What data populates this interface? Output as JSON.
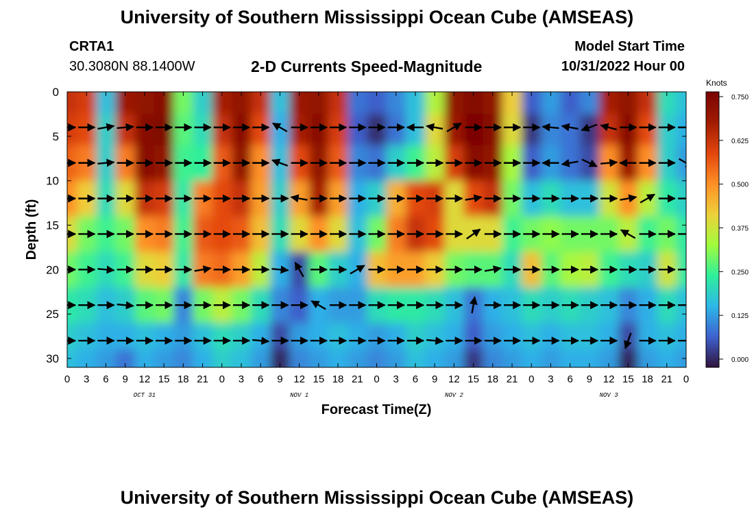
{
  "header": {
    "title": "University of Southern Mississippi Ocean Cube (AMSEAS)",
    "station_id": "CRTA1",
    "coordinates": "30.3080N  88.1400W",
    "subtitle": "2-D Currents Speed-Magnitude",
    "model_start_label": "Model Start Time",
    "model_start_value": "10/31/2022 Hour 00"
  },
  "footer": {
    "title": "University of Southern Mississippi Ocean Cube (AMSEAS)"
  },
  "chart_data": {
    "type": "heatmap",
    "title": "2-D Currents Speed-Magnitude",
    "xlabel": "Forecast Time(Z)",
    "ylabel": "Depth (ft)",
    "x_unit": "hours since 10/31/2022 00Z",
    "xlim": [
      0,
      96
    ],
    "ylim": [
      0,
      31
    ],
    "y_inverted": true,
    "x_ticks": [
      0,
      3,
      6,
      9,
      12,
      15,
      18,
      21,
      24,
      27,
      30,
      33,
      36,
      39,
      42,
      45,
      48,
      51,
      54,
      57,
      60,
      63,
      66,
      69,
      72,
      75,
      78,
      81,
      84,
      87,
      90,
      93,
      96
    ],
    "x_tick_labels": [
      "0",
      "3",
      "6",
      "9",
      "12",
      "15",
      "18",
      "21",
      "0",
      "3",
      "6",
      "9",
      "12",
      "15",
      "18",
      "21",
      "0",
      "3",
      "6",
      "9",
      "12",
      "15",
      "18",
      "21",
      "0",
      "3",
      "6",
      "9",
      "12",
      "15",
      "18",
      "21",
      "0"
    ],
    "day_labels": [
      {
        "hour": 12,
        "text": "OCT 31"
      },
      {
        "hour": 36,
        "text": "NOV 1"
      },
      {
        "hour": 60,
        "text": "NOV 2"
      },
      {
        "hour": 84,
        "text": "NOV 3"
      }
    ],
    "y_ticks": [
      0,
      5,
      10,
      15,
      20,
      25,
      30
    ],
    "y_tick_labels": [
      "0",
      "5",
      "10",
      "15",
      "20",
      "25",
      "30"
    ],
    "colorbar": {
      "unit": "Knots",
      "range": [
        0,
        0.75
      ],
      "ticks": [
        0.0,
        0.125,
        0.25,
        0.375,
        0.5,
        0.625,
        0.75
      ],
      "tick_labels": [
        "0.000",
        "0.125",
        "0.250",
        "0.375",
        "0.500",
        "0.625",
        "0.750"
      ],
      "colormap": [
        "#30123b",
        "#3e62cf",
        "#2db7e8",
        "#2fef9b",
        "#a1fc3d",
        "#edd03a",
        "#fe8f26",
        "#e2460d",
        "#a11b02",
        "#7a0403"
      ]
    },
    "time_steps": [
      0,
      3,
      6,
      9,
      12,
      15,
      18,
      21,
      24,
      27,
      30,
      33,
      36,
      39,
      42,
      45,
      48,
      51,
      54,
      57,
      60,
      63,
      66,
      69,
      72,
      75,
      78,
      81,
      84,
      87,
      90,
      93,
      96
    ],
    "depths": [
      1,
      4,
      8,
      12,
      16,
      20,
      24,
      28,
      30
    ],
    "speed_knots": [
      [
        0.62,
        0.6,
        0.18,
        0.68,
        0.7,
        0.72,
        0.3,
        0.2,
        0.66,
        0.7,
        0.62,
        0.18,
        0.68,
        0.7,
        0.62,
        0.1,
        0.08,
        0.12,
        0.18,
        0.35,
        0.7,
        0.73,
        0.7,
        0.42,
        0.08,
        0.14,
        0.08,
        0.12,
        0.66,
        0.7,
        0.62,
        0.22,
        0.18
      ],
      [
        0.6,
        0.58,
        0.2,
        0.62,
        0.72,
        0.74,
        0.28,
        0.22,
        0.62,
        0.72,
        0.58,
        0.16,
        0.66,
        0.72,
        0.6,
        0.08,
        0.03,
        0.1,
        0.18,
        0.4,
        0.68,
        0.75,
        0.72,
        0.4,
        0.04,
        0.12,
        0.1,
        0.04,
        0.62,
        0.72,
        0.58,
        0.2,
        0.16
      ],
      [
        0.55,
        0.52,
        0.2,
        0.52,
        0.72,
        0.7,
        0.26,
        0.25,
        0.56,
        0.7,
        0.5,
        0.18,
        0.58,
        0.7,
        0.56,
        0.12,
        0.1,
        0.2,
        0.26,
        0.36,
        0.6,
        0.72,
        0.7,
        0.34,
        0.08,
        0.14,
        0.1,
        0.06,
        0.5,
        0.68,
        0.5,
        0.2,
        0.14
      ],
      [
        0.5,
        0.42,
        0.22,
        0.4,
        0.62,
        0.6,
        0.24,
        0.52,
        0.58,
        0.62,
        0.48,
        0.2,
        0.48,
        0.66,
        0.48,
        0.16,
        0.2,
        0.46,
        0.58,
        0.6,
        0.4,
        0.58,
        0.62,
        0.3,
        0.18,
        0.22,
        0.18,
        0.18,
        0.38,
        0.5,
        0.36,
        0.24,
        0.2
      ],
      [
        0.4,
        0.3,
        0.26,
        0.3,
        0.5,
        0.52,
        0.26,
        0.56,
        0.58,
        0.56,
        0.44,
        0.22,
        0.4,
        0.5,
        0.4,
        0.18,
        0.3,
        0.52,
        0.62,
        0.58,
        0.4,
        0.4,
        0.4,
        0.26,
        0.3,
        0.32,
        0.3,
        0.3,
        0.3,
        0.36,
        0.26,
        0.3,
        0.24
      ],
      [
        0.3,
        0.26,
        0.22,
        0.26,
        0.4,
        0.42,
        0.24,
        0.52,
        0.54,
        0.48,
        0.36,
        0.16,
        0.06,
        0.28,
        0.2,
        0.16,
        0.44,
        0.48,
        0.48,
        0.42,
        0.3,
        0.28,
        0.28,
        0.22,
        0.44,
        0.28,
        0.34,
        0.36,
        0.26,
        0.22,
        0.2,
        0.38,
        0.24
      ],
      [
        0.24,
        0.22,
        0.18,
        0.2,
        0.28,
        0.3,
        0.12,
        0.3,
        0.36,
        0.3,
        0.22,
        0.12,
        0.08,
        0.16,
        0.14,
        0.14,
        0.22,
        0.24,
        0.24,
        0.22,
        0.18,
        0.1,
        0.16,
        0.18,
        0.22,
        0.2,
        0.22,
        0.2,
        0.18,
        0.12,
        0.16,
        0.22,
        0.18
      ],
      [
        0.2,
        0.18,
        0.16,
        0.16,
        0.18,
        0.16,
        0.14,
        0.18,
        0.22,
        0.2,
        0.16,
        0.06,
        0.14,
        0.16,
        0.18,
        0.16,
        0.14,
        0.16,
        0.2,
        0.18,
        0.16,
        0.08,
        0.14,
        0.16,
        0.18,
        0.16,
        0.18,
        0.18,
        0.16,
        0.06,
        0.16,
        0.18,
        0.16
      ],
      [
        0.18,
        0.16,
        0.14,
        0.1,
        0.16,
        0.14,
        0.12,
        0.16,
        0.2,
        0.18,
        0.14,
        0.02,
        0.12,
        0.14,
        0.16,
        0.14,
        0.12,
        0.14,
        0.18,
        0.16,
        0.14,
        0.04,
        0.12,
        0.14,
        0.16,
        0.14,
        0.16,
        0.16,
        0.14,
        0.02,
        0.14,
        0.16,
        0.14
      ]
    ],
    "vector_depths": [
      4,
      8,
      12,
      16,
      20,
      24,
      28
    ],
    "vector_hours": [
      0,
      3,
      6,
      9,
      12,
      15,
      18,
      21,
      24,
      27,
      30,
      33,
      36,
      39,
      42,
      45,
      48,
      51,
      54,
      57,
      60,
      63,
      66,
      69,
      72,
      75,
      78,
      81,
      84,
      87,
      90,
      93,
      96
    ],
    "vector_direction_deg": [
      [
        90,
        90,
        80,
        85,
        90,
        90,
        90,
        90,
        90,
        90,
        90,
        300,
        90,
        90,
        90,
        90,
        90,
        90,
        270,
        280,
        60,
        90,
        90,
        90,
        90,
        275,
        280,
        250,
        285,
        90,
        90,
        90,
        90
      ],
      [
        90,
        90,
        85,
        90,
        90,
        90,
        90,
        90,
        90,
        90,
        90,
        290,
        90,
        90,
        90,
        90,
        90,
        90,
        90,
        90,
        90,
        90,
        90,
        90,
        90,
        270,
        260,
        115,
        85,
        270,
        90,
        90,
        120
      ],
      [
        90,
        90,
        90,
        90,
        90,
        90,
        90,
        90,
        90,
        90,
        90,
        90,
        280,
        90,
        90,
        90,
        90,
        90,
        90,
        90,
        90,
        80,
        90,
        90,
        90,
        90,
        90,
        90,
        90,
        80,
        60,
        90,
        90
      ],
      [
        90,
        90,
        90,
        90,
        90,
        90,
        90,
        90,
        90,
        90,
        90,
        90,
        90,
        90,
        90,
        90,
        90,
        90,
        90,
        90,
        90,
        55,
        90,
        90,
        90,
        90,
        90,
        90,
        90,
        300,
        90,
        90,
        90
      ],
      [
        90,
        90,
        95,
        90,
        90,
        90,
        90,
        80,
        90,
        90,
        90,
        95,
        330,
        90,
        90,
        60,
        90,
        90,
        90,
        90,
        90,
        90,
        80,
        90,
        90,
        90,
        90,
        90,
        90,
        90,
        90,
        90,
        90
      ],
      [
        90,
        90,
        90,
        95,
        90,
        90,
        90,
        90,
        90,
        90,
        90,
        90,
        90,
        300,
        90,
        90,
        90,
        90,
        90,
        90,
        90,
        10,
        90,
        90,
        90,
        90,
        90,
        90,
        90,
        90,
        90,
        90,
        90
      ],
      [
        90,
        90,
        90,
        90,
        90,
        90,
        90,
        90,
        90,
        90,
        95,
        90,
        90,
        90,
        90,
        90,
        90,
        90,
        90,
        95,
        90,
        90,
        90,
        90,
        90,
        90,
        90,
        90,
        90,
        200,
        90,
        90,
        90
      ]
    ]
  }
}
